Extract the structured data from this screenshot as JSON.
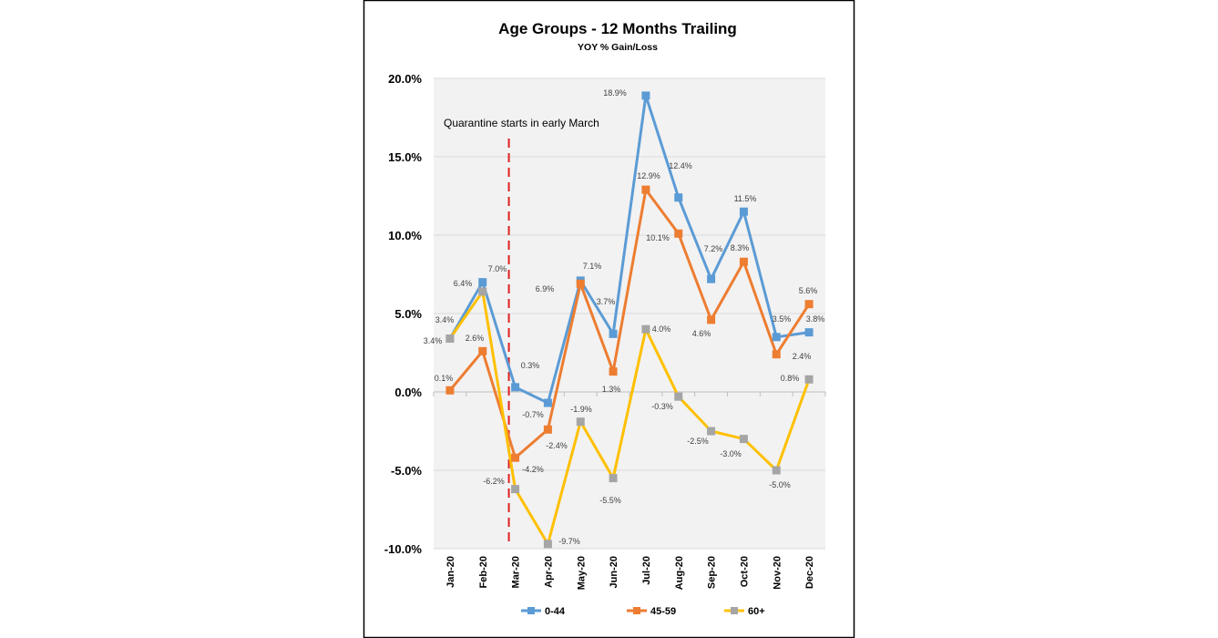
{
  "chart_data": {
    "type": "line",
    "title": "Age Groups - 12 Months Trailing",
    "subtitle": "YOY % Gain/Loss",
    "categories": [
      "Jan-20",
      "Feb-20",
      "Mar-20",
      "Apr-20",
      "May-20",
      "Jun-20",
      "Jul-20",
      "Aug-20",
      "Sep-20",
      "Oct-20",
      "Nov-20",
      "Dec-20"
    ],
    "ylim": [
      -10,
      20
    ],
    "yticks": [
      -10,
      -5,
      0,
      5,
      10,
      15,
      20
    ],
    "ytick_labels": [
      "-10.0%",
      "-5.0%",
      "0.0%",
      "5.0%",
      "10.0%",
      "15.0%",
      "20.0%"
    ],
    "grid": true,
    "legend_position": "bottom",
    "annotation": {
      "text": "Quarantine starts in early March",
      "x": "Mar-20",
      "color": "#e02020",
      "style": "dashed"
    },
    "series": [
      {
        "name": "0-44",
        "line_color": "#5b9bd5",
        "marker_color": "#5b9bd5",
        "values": [
          3.4,
          7.0,
          0.3,
          -0.7,
          7.1,
          3.7,
          18.9,
          12.4,
          7.2,
          11.5,
          3.5,
          3.8
        ],
        "labels": [
          "3.4%",
          "7.0%",
          "0.3%",
          "-0.7%",
          "7.1%",
          "3.7%",
          "18.9%",
          "12.4%",
          "7.2%",
          "11.5%",
          "3.5%",
          "3.8%"
        ]
      },
      {
        "name": "45-59",
        "line_color": "#ed7d31",
        "marker_color": "#ed7d31",
        "values": [
          0.1,
          2.6,
          -4.2,
          -2.4,
          6.9,
          1.3,
          12.9,
          10.1,
          4.6,
          8.3,
          2.4,
          5.6
        ],
        "labels": [
          "0.1%",
          "2.6%",
          "-4.2%",
          "-2.4%",
          "6.9%",
          "1.3%",
          "12.9%",
          "10.1%",
          "4.6%",
          "8.3%",
          "2.4%",
          "5.6%"
        ]
      },
      {
        "name": "60+",
        "line_color": "#ffc000",
        "marker_color": "#a5a5a5",
        "values": [
          3.4,
          6.4,
          -6.2,
          -9.7,
          -1.9,
          -5.5,
          4.0,
          -0.3,
          -2.5,
          -3.0,
          -5.0,
          0.8
        ],
        "labels": [
          "3.4%",
          "6.4%",
          "-6.2%",
          "-9.7%",
          "-1.9%",
          "-5.5%",
          "4.0%",
          "-0.3%",
          "-2.5%",
          "-3.0%",
          "-5.0%",
          "0.8%"
        ]
      }
    ]
  }
}
